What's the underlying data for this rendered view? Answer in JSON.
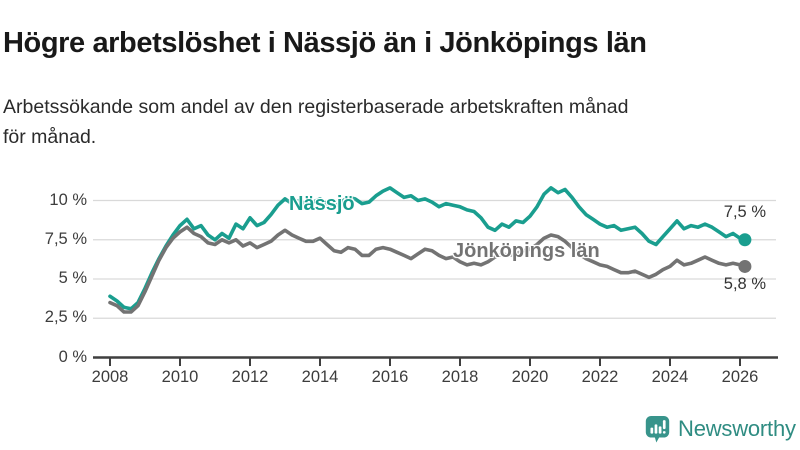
{
  "header": {
    "title": "Högre arbetslöshet i Nässjö än i Jönköpings län",
    "subtitle_line1": "Arbetssökande som andel av den registerbaserade arbetskraften månad",
    "subtitle_line2": "för månad."
  },
  "chart_data": {
    "type": "line",
    "unit": "%",
    "grid": "horizontal",
    "legend": "inline-labels",
    "ylim": [
      0,
      11.5
    ],
    "xlim": [
      2007.9,
      2027.1
    ],
    "y_ticks": [
      {
        "value": 0,
        "label": "0 %"
      },
      {
        "value": 2.5,
        "label": "2,5 %"
      },
      {
        "value": 5,
        "label": "5 %"
      },
      {
        "value": 7.5,
        "label": "7,5 %"
      },
      {
        "value": 10,
        "label": "10 %"
      }
    ],
    "x_ticks": [
      {
        "value": 2008,
        "label": "2008"
      },
      {
        "value": 2010,
        "label": "2010"
      },
      {
        "value": 2012,
        "label": "2012"
      },
      {
        "value": 2014,
        "label": "2014"
      },
      {
        "value": 2016,
        "label": "2016"
      },
      {
        "value": 2018,
        "label": "2018"
      },
      {
        "value": 2020,
        "label": "2020"
      },
      {
        "value": 2022,
        "label": "2022"
      },
      {
        "value": 2024,
        "label": "2024"
      },
      {
        "value": 2026,
        "label": "2026"
      }
    ],
    "x": [
      2008.0,
      2008.2,
      2008.4,
      2008.6,
      2008.8,
      2009.0,
      2009.2,
      2009.4,
      2009.6,
      2009.8,
      2010.0,
      2010.2,
      2010.4,
      2010.6,
      2010.8,
      2011.0,
      2011.2,
      2011.4,
      2011.6,
      2011.8,
      2012.0,
      2012.2,
      2012.4,
      2012.6,
      2012.8,
      2013.0,
      2013.2,
      2013.4,
      2013.6,
      2013.8,
      2014.0,
      2014.2,
      2014.4,
      2014.6,
      2014.8,
      2015.0,
      2015.2,
      2015.4,
      2015.6,
      2015.8,
      2016.0,
      2016.2,
      2016.4,
      2016.6,
      2016.8,
      2017.0,
      2017.2,
      2017.4,
      2017.6,
      2017.8,
      2018.0,
      2018.2,
      2018.4,
      2018.6,
      2018.8,
      2019.0,
      2019.2,
      2019.4,
      2019.6,
      2019.8,
      2020.0,
      2020.2,
      2020.4,
      2020.6,
      2020.8,
      2021.0,
      2021.2,
      2021.4,
      2021.6,
      2021.8,
      2022.0,
      2022.2,
      2022.4,
      2022.6,
      2022.8,
      2023.0,
      2023.2,
      2023.4,
      2023.6,
      2023.8,
      2024.0,
      2024.2,
      2024.4,
      2024.6,
      2024.8,
      2025.0,
      2025.2,
      2025.4,
      2025.6,
      2025.8,
      2026.0,
      2026.14
    ],
    "series": [
      {
        "name": "Nässjö",
        "color": "#1a9e8f",
        "end_label": "7,5 %",
        "end_value": 7.5,
        "values": [
          3.9,
          3.6,
          3.2,
          3.1,
          3.5,
          4.4,
          5.4,
          6.3,
          7.1,
          7.8,
          8.4,
          8.8,
          8.2,
          8.4,
          7.8,
          7.5,
          7.9,
          7.6,
          8.5,
          8.2,
          8.9,
          8.4,
          8.6,
          9.1,
          9.7,
          10.1,
          9.8,
          10.0,
          9.7,
          9.9,
          10.1,
          9.8,
          9.6,
          9.9,
          10.2,
          10.1,
          9.8,
          9.9,
          10.3,
          10.6,
          10.8,
          10.5,
          10.2,
          10.3,
          10.0,
          10.1,
          9.9,
          9.6,
          9.8,
          9.7,
          9.6,
          9.4,
          9.3,
          8.9,
          8.3,
          8.1,
          8.5,
          8.3,
          8.7,
          8.6,
          9.0,
          9.6,
          10.4,
          10.8,
          10.5,
          10.7,
          10.2,
          9.6,
          9.1,
          8.8,
          8.5,
          8.3,
          8.4,
          8.1,
          8.2,
          8.3,
          7.9,
          7.4,
          7.2,
          7.7,
          8.2,
          8.7,
          8.2,
          8.4,
          8.3,
          8.5,
          8.3,
          8.0,
          7.7,
          7.9,
          7.6,
          7.5
        ]
      },
      {
        "name": "Jönköpings län",
        "color": "#737373",
        "end_label": "5,8 %",
        "end_value": 5.8,
        "values": [
          3.5,
          3.3,
          2.9,
          2.9,
          3.3,
          4.2,
          5.2,
          6.2,
          7.0,
          7.6,
          8.0,
          8.3,
          7.9,
          7.7,
          7.3,
          7.2,
          7.5,
          7.3,
          7.5,
          7.1,
          7.3,
          7.0,
          7.2,
          7.4,
          7.8,
          8.1,
          7.8,
          7.6,
          7.4,
          7.4,
          7.6,
          7.2,
          6.8,
          6.7,
          7.0,
          6.9,
          6.5,
          6.5,
          6.9,
          7.0,
          6.9,
          6.7,
          6.5,
          6.3,
          6.6,
          6.9,
          6.8,
          6.5,
          6.3,
          6.4,
          6.1,
          5.9,
          6.0,
          5.9,
          6.1,
          6.4,
          6.6,
          6.5,
          6.6,
          6.8,
          6.9,
          7.2,
          7.6,
          7.8,
          7.7,
          7.4,
          7.0,
          6.6,
          6.3,
          6.1,
          5.9,
          5.8,
          5.6,
          5.4,
          5.4,
          5.5,
          5.3,
          5.1,
          5.3,
          5.6,
          5.8,
          6.2,
          5.9,
          6.0,
          6.2,
          6.4,
          6.2,
          6.0,
          5.9,
          6.0,
          5.9,
          5.8
        ]
      }
    ],
    "style": {
      "grid_color": "#d9d9d9",
      "axis_color": "#3f3f3f",
      "tick_text_color": "#3d3d3d"
    }
  },
  "branding": {
    "wordmark": "Newsworthy",
    "badge_color": "#38948b",
    "wordmark_color": "#2f8c82"
  }
}
